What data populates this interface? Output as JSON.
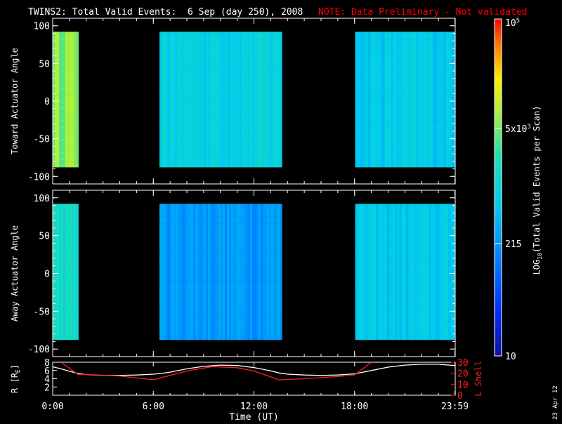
{
  "header": {
    "title": "TWINS2: Total Valid Events:  6 Sep (day 250), 2008",
    "note": "NOTE: Data Preliminary - Not validated"
  },
  "stamp": "23 Apr 12",
  "colors": {
    "background": "#000000",
    "foreground": "#ffffff",
    "note": "#ff0000",
    "lshell": "#ff2020",
    "radius": "#ffffff"
  },
  "colorbar": {
    "label": "LOG10(Total Valid Events per Scan)",
    "label_prefix": "LOG",
    "label_sub": "10",
    "label_suffix": "(Total Valid  Events per Scan)",
    "scale": "log",
    "range": [
      10,
      100000
    ],
    "ticks": [
      {
        "value": 10,
        "label": "10"
      },
      {
        "value": 215,
        "label": "215"
      },
      {
        "value": 5000,
        "label": "5x10",
        "sup": "3"
      },
      {
        "value": 100000,
        "label": "10",
        "sup": "5"
      }
    ]
  },
  "chart_data": [
    {
      "type": "heatmap",
      "name": "toward",
      "ylabel": "Toward Actuator Angle",
      "ylim": [
        -110,
        110
      ],
      "xlim_hours": [
        0,
        24
      ],
      "yticks": [
        -100,
        -50,
        0,
        50,
        100
      ],
      "data_blocks": [
        {
          "start": "00:00",
          "end": "01:32",
          "angle_range": [
            -88,
            92
          ],
          "level": 6500
        },
        {
          "start": "06:22",
          "end": "13:40",
          "angle_range": [
            -88,
            92
          ],
          "level": 900
        },
        {
          "start": "18:02",
          "end": "23:59",
          "angle_range": [
            -88,
            92
          ],
          "level": 700
        }
      ]
    },
    {
      "type": "heatmap",
      "name": "away",
      "ylabel": "Away Actuator Angle",
      "ylim": [
        -110,
        110
      ],
      "xlim_hours": [
        0,
        24
      ],
      "yticks": [
        -100,
        -50,
        0,
        50,
        100
      ],
      "data_blocks": [
        {
          "start": "00:00",
          "end": "01:32",
          "angle_range": [
            -88,
            92
          ],
          "level": 1500
        },
        {
          "start": "06:22",
          "end": "13:40",
          "angle_range": [
            -88,
            92
          ],
          "level": 250
        },
        {
          "start": "18:02",
          "end": "23:59",
          "angle_range": [
            -88,
            92
          ],
          "level": 650
        }
      ]
    },
    {
      "type": "line",
      "name": "orbit",
      "xlabel": "Time (UT)",
      "ylabel_left": "R [RE]",
      "ylabel_left_prefix": "R [R",
      "ylabel_left_sub": "E",
      "ylabel_left_suffix": "]",
      "ylabel_right": "L Shell",
      "ylim_left": [
        0,
        8
      ],
      "ylim_right": [
        0,
        30
      ],
      "yticks_left": [
        2,
        4,
        6,
        8
      ],
      "yticks_right": [
        0,
        10,
        20,
        30
      ],
      "xticks": [
        {
          "hour": 0,
          "label": "0:00"
        },
        {
          "hour": 6,
          "label": "6:00"
        },
        {
          "hour": 12,
          "label": "12:00"
        },
        {
          "hour": 18,
          "label": "18:00"
        },
        {
          "hour": 23.98,
          "label": "23:59"
        }
      ],
      "series": [
        {
          "name": "R [RE]",
          "axis": "left",
          "x": [
            0,
            0.5,
            1,
            1.5,
            2,
            3,
            4,
            5,
            6,
            6.5,
            7,
            8,
            9,
            10,
            11,
            12,
            13,
            13.5,
            14,
            15,
            16,
            17,
            18,
            19,
            20,
            21,
            22,
            23,
            23.98
          ],
          "y": [
            6.9,
            6.4,
            5.8,
            5.3,
            5.0,
            4.8,
            4.8,
            4.9,
            5.1,
            5.3,
            5.6,
            6.4,
            7.0,
            7.3,
            7.2,
            6.7,
            5.9,
            5.4,
            5.1,
            4.9,
            4.8,
            4.9,
            5.2,
            6.0,
            6.8,
            7.3,
            7.5,
            7.5,
            7.2
          ]
        },
        {
          "name": "L Shell",
          "axis": "right",
          "x": [
            0.5,
            1.5,
            2.5,
            4,
            6,
            6.5,
            8,
            9.5,
            11,
            12,
            13.5,
            15,
            17,
            18,
            19
          ],
          "y": [
            30,
            19,
            18.5,
            17.5,
            14,
            16,
            22,
            26,
            25,
            22,
            14,
            15,
            17,
            18.5,
            30
          ]
        }
      ]
    }
  ]
}
